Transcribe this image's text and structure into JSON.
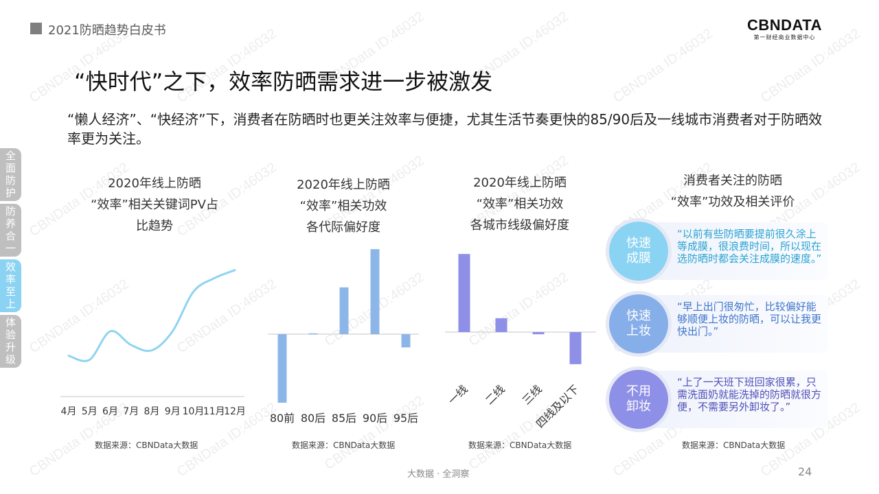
{
  "header": {
    "top_label": "2021防晒趋势白皮书",
    "logo_main": "CBNDATA",
    "logo_sub": "第一财经商业数据中心"
  },
  "title": "“快时代”之下，效率防晒需求进一步被激发",
  "subtitle": "“懒人经济”、“快经济”下，消费者在防晒时也更关注效率与便捷，尤其生活节奏更快的85/90后及一线城市消费者对于防晒效率更为关注。",
  "sidenav": [
    {
      "label": "全面防护",
      "active": false
    },
    {
      "label": "防养合一",
      "active": false
    },
    {
      "label": "效率至上",
      "active": true
    },
    {
      "label": "体验升级",
      "active": false
    }
  ],
  "watermark_text": "CBNData ID:46032",
  "chart_data": [
    {
      "type": "line",
      "title_lines": [
        "2020年线上防晒",
        "“效率”相关关键词PV占",
        "比趋势"
      ],
      "x": [
        "4月",
        "5月",
        "6月",
        "7月",
        "8月",
        "9月",
        "10月",
        "11月",
        "12月"
      ],
      "series": [
        {
          "values": [
            30,
            27,
            48,
            38,
            34,
            48,
            77,
            87,
            93
          ],
          "color": "#8ed4f0"
        }
      ],
      "ylim": [
        0,
        110
      ],
      "grid": false,
      "source": "数据来源：CBNData大数据"
    },
    {
      "type": "bar",
      "title_lines": [
        "2020年线上防晒",
        "“效率”相关功效",
        "各代际偏好度"
      ],
      "categories": [
        "80前",
        "80后",
        "85后",
        "90后",
        "95后"
      ],
      "values": [
        -88,
        1,
        60,
        109,
        -17
      ],
      "ylim": [
        -100,
        120
      ],
      "color": "#8db6e8",
      "grid": false,
      "source": "数据来源：CBNData大数据"
    },
    {
      "type": "bar",
      "title_lines": [
        "2020年线上防晒",
        "“效率”相关功效",
        "各城市线级偏好度"
      ],
      "categories": [
        "一线",
        "二线",
        "三线",
        "四线及以下"
      ],
      "values": [
        107,
        19,
        -3,
        -44
      ],
      "ylim": [
        -100,
        120
      ],
      "color": "#8e8fe6",
      "grid": false,
      "source": "数据来源：CBNData大数据"
    }
  ],
  "evaluation": {
    "title_lines": [
      "消费者关注的防晒",
      "“效率”功效及相关评价"
    ],
    "items": [
      {
        "label_lines": [
          "快速",
          "成膜"
        ],
        "quote": "“以前有些防晒要提前很久涂上等成膜，很浪费时间，所以现在选防晒时都会关注成膜的速度。”",
        "circle_color": "#8bd3f2",
        "text_color": "#2aa3d1"
      },
      {
        "label_lines": [
          "快速",
          "上妆"
        ],
        "quote": "“早上出门很匆忙，比较偏好能够顺便上妆的防晒，可以让我更快出门。”",
        "circle_color": "#86aee8",
        "text_color": "#3d74c9"
      },
      {
        "label_lines": [
          "不用",
          "卸妆"
        ],
        "quote": "“上了一天班下班回家很累，只需洗面奶就能洗掉的防晒就很方便，不需要另外卸妆了。”",
        "circle_color": "#8e8fe6",
        "text_color": "#4f4fb8"
      }
    ],
    "source": "数据来源：CBNData大数据"
  },
  "footer": {
    "text": "大数据 · 全洞察",
    "page": "24"
  }
}
